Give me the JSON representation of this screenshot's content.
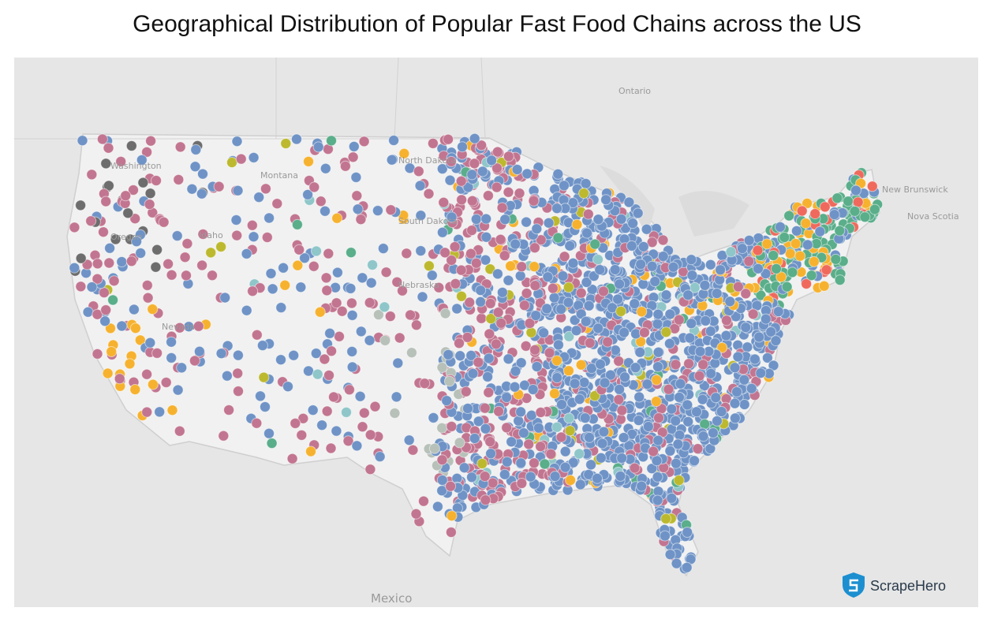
{
  "header": {
    "title": "Geographical Distribution of Popular Fast Food Chains across the US"
  },
  "map": {
    "labels": [
      "Ontario",
      "Washington",
      "Montana",
      "North Dakota",
      "South Dakota",
      "Oregon",
      "Idaho",
      "Nevada",
      "Nebraska",
      "New Brunswick",
      "Nova Scotia",
      "Mexico"
    ],
    "dot_colors": {
      "blue": "#6f93c6",
      "pink": "#c27590",
      "green": "#5aae8a",
      "red": "#ef6a5d",
      "orange": "#f6b22f",
      "sage": "#b7c1b9",
      "gray": "#6d6d6d",
      "olive": "#bdb92f",
      "teal": "#8fc6c9"
    }
  },
  "logo": {
    "text": "ScrapeHero"
  }
}
